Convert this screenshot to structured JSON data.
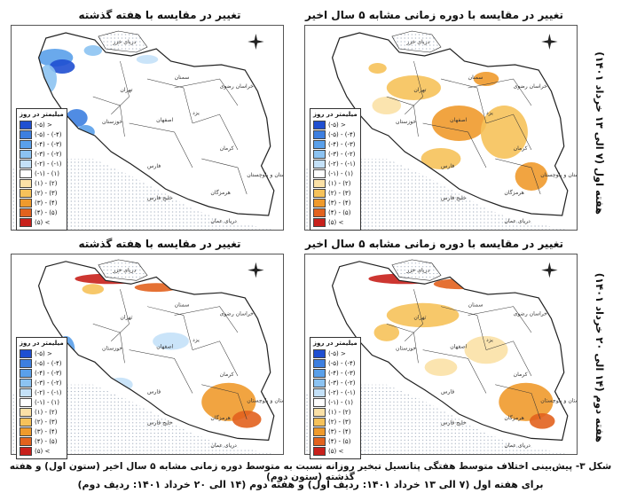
{
  "panels": [
    {
      "title": "تغییر در مقایسه با هفته گذشته",
      "sea_north": "دریای خزر",
      "sea_south": "دریای عمان",
      "persian_gulf": "خلیج فارس"
    },
    {
      "title": "تغییر در مقایسه با دوره زمانی مشابه ۵ سال اخیر",
      "sea_north": "دریای خزر",
      "sea_south": "دریای عمان",
      "persian_gulf": "خلیج فارس"
    },
    {
      "title": "تغییر در مقایسه با هفته گذشته",
      "sea_north": "دریای خزر",
      "sea_south": "دریای عمان",
      "persian_gulf": "خلیج فارس"
    },
    {
      "title": "تغییر در مقایسه با دوره زمانی مشابه ۵ سال اخیر",
      "sea_north": "دریای خزر",
      "sea_south": "دریای عمان",
      "persian_gulf": "خلیج فارس"
    }
  ],
  "legend": {
    "title": "میلیمتر در روز",
    "items": [
      {
        "label": "(-۵) >",
        "color": "#1f4fd1"
      },
      {
        "label": "(-۵) - (-۴)",
        "color": "#3d7fe0"
      },
      {
        "label": "(-۴) - (-۳)",
        "color": "#5aa0ea"
      },
      {
        "label": "(-۳) - (-۲)",
        "color": "#8cc3f2"
      },
      {
        "label": "(-۲) - (-۱)",
        "color": "#c4e1f8"
      },
      {
        "label": "(-۱) - (۱)",
        "color": "#ffffff"
      },
      {
        "label": "(۱) - (۲)",
        "color": "#fbe1a6"
      },
      {
        "label": "(۲) - (۳)",
        "color": "#f6c25a"
      },
      {
        "label": "(۳) - (۴)",
        "color": "#ef9a2c"
      },
      {
        "label": "(۴) - (۵)",
        "color": "#e2621e"
      },
      {
        "label": "(۵) <",
        "color": "#c8201b"
      }
    ]
  },
  "row_labels": [
    "هفته اول (۷ الی ۱۳ خرداد ۱۴۰۱)",
    "هفته دوم (۱۴ الی ۲۰ خرداد ۱۴۰۱)"
  ],
  "caption": {
    "line1": "شکل ۳- پیش‌بینی اختلاف متوسط هفتگی پتانسیل تبخیر روزانه نسبت به متوسط دوره زمانی مشابه ۵ سال اخیر (ستون اول) و هفته گذشته (ستون دوم)",
    "line2": "برای هفته اول (۷ الی ۱۳ خرداد ۱۴۰۱: ردیف اول) و هفته دوم (۱۴ الی ۲۰ خرداد ۱۴۰۱: ردیف دوم)"
  },
  "provinces": [
    "تهران",
    "اصفهان",
    "فارس",
    "کرمان",
    "یزد",
    "خراسان رضوی",
    "خوزستان",
    "سمنان",
    "هرمزگان",
    "سیستان و بلوچستان"
  ],
  "map_colors": {
    "border": "#222222",
    "sea_hatch": "#9aa6b8"
  }
}
